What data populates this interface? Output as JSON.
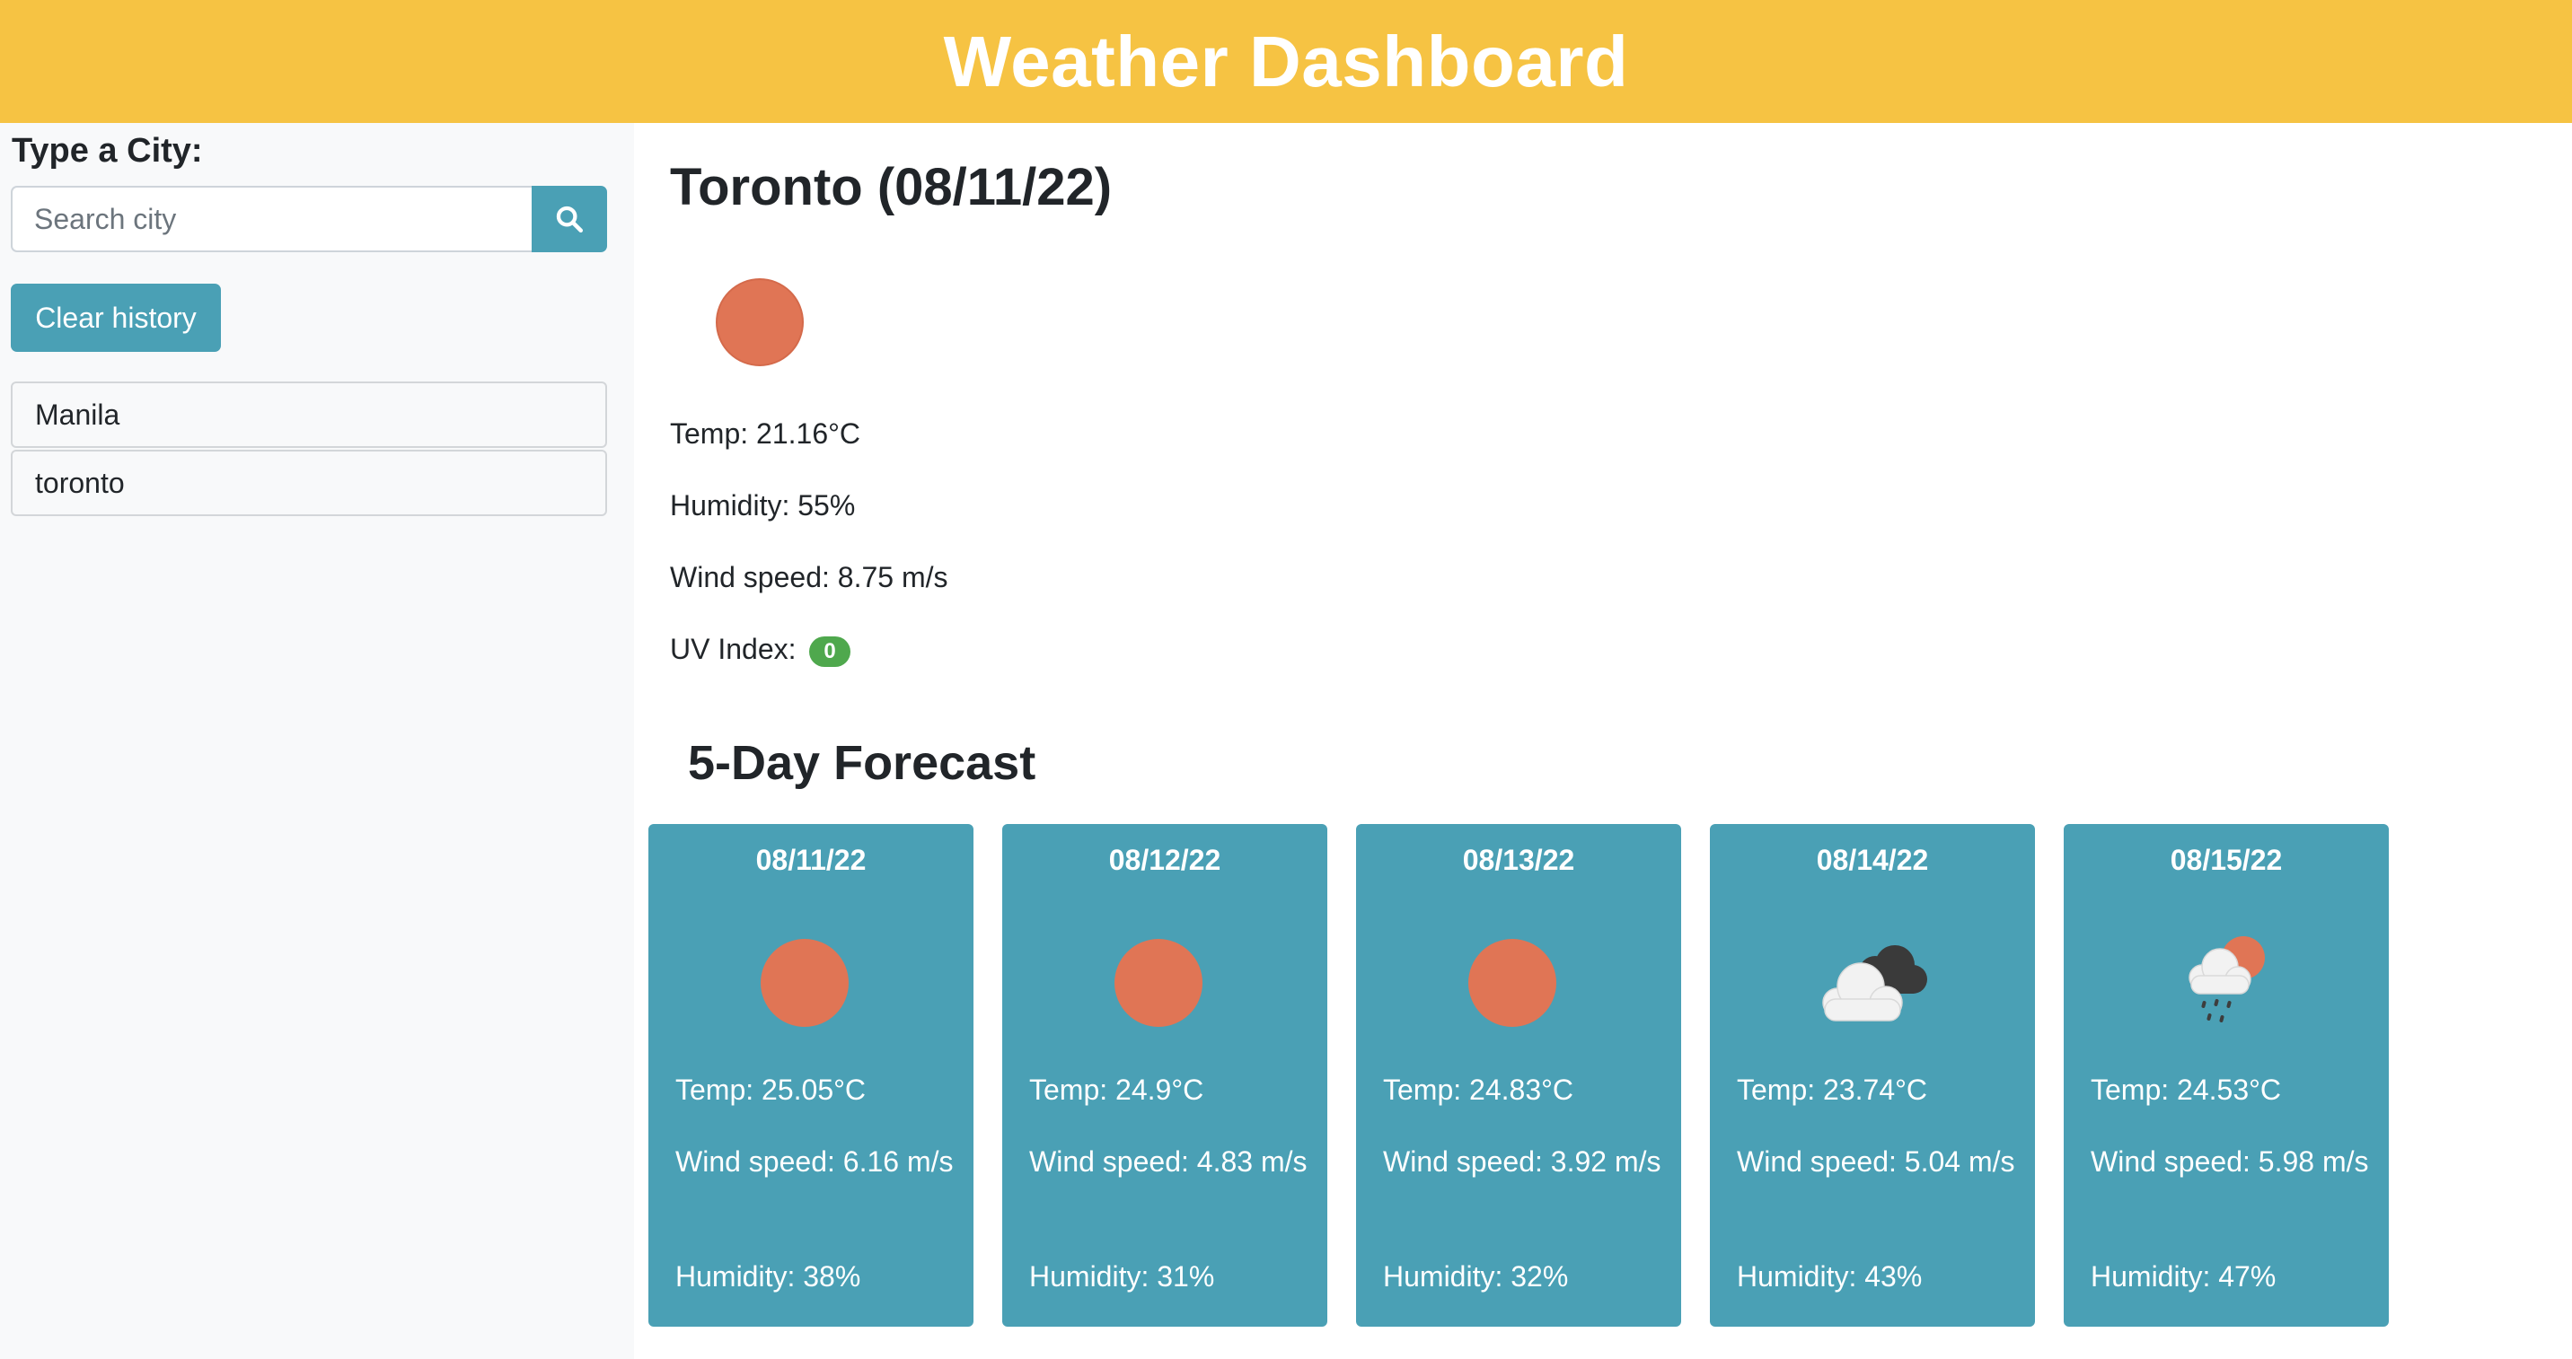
{
  "header": {
    "title": "Weather Dashboard"
  },
  "sidebar": {
    "label": "Type a City:",
    "search_placeholder": "Search city",
    "search_icon": "search-icon",
    "clear_label": "Clear history",
    "history": [
      "Manila",
      "toronto"
    ]
  },
  "current": {
    "title": "Toronto (08/11/22)",
    "icon": "sun-icon",
    "temp": "Temp: 21.16°C",
    "humidity": "Humidity: 55%",
    "wind": "Wind speed: 8.75 m/s",
    "uv_label": "UV Index:",
    "uv_value": "0"
  },
  "forecast": {
    "title": "5-Day Forecast",
    "days": [
      {
        "date": "08/11/22",
        "icon": "sun-icon",
        "temp": "Temp: 25.05°C",
        "wind": "Wind speed: 6.16 m/s",
        "humidity": "Humidity: 38%"
      },
      {
        "date": "08/12/22",
        "icon": "sun-icon",
        "temp": "Temp: 24.9°C",
        "wind": "Wind speed: 4.83 m/s",
        "humidity": "Humidity: 31%"
      },
      {
        "date": "08/13/22",
        "icon": "sun-icon",
        "temp": "Temp: 24.83°C",
        "wind": "Wind speed: 3.92 m/s",
        "humidity": "Humidity: 32%"
      },
      {
        "date": "08/14/22",
        "icon": "broken-clouds-icon",
        "temp": "Temp: 23.74°C",
        "wind": "Wind speed: 5.04 m/s",
        "humidity": "Humidity: 43%"
      },
      {
        "date": "08/15/22",
        "icon": "rain-icon",
        "temp": "Temp: 24.53°C",
        "wind": "Wind speed: 5.98 m/s",
        "humidity": "Humidity: 47%"
      }
    ]
  },
  "colors": {
    "header": "#f6c343",
    "accent": "#4aa0b5",
    "sun": "#e07555",
    "uv_badge": "#4fa84d"
  }
}
